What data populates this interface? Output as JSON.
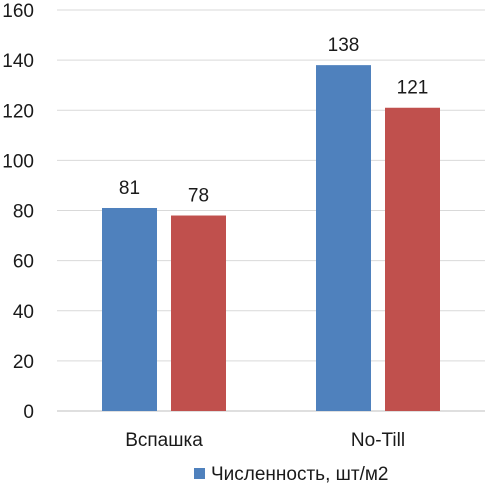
{
  "chart_data": {
    "type": "bar",
    "categories": [
      "Вспашка",
      "No-Till"
    ],
    "series": [
      {
        "name": "Численность, шт/м2",
        "values": [
          81,
          138
        ],
        "color": "#4f81bd"
      },
      {
        "values": [
          78,
          121
        ],
        "color": "#c0504d"
      }
    ],
    "ylim": [
      0,
      160
    ],
    "yticks": [
      0,
      20,
      40,
      60,
      80,
      100,
      120,
      140,
      160
    ],
    "grid": true,
    "legend": "bottom"
  }
}
